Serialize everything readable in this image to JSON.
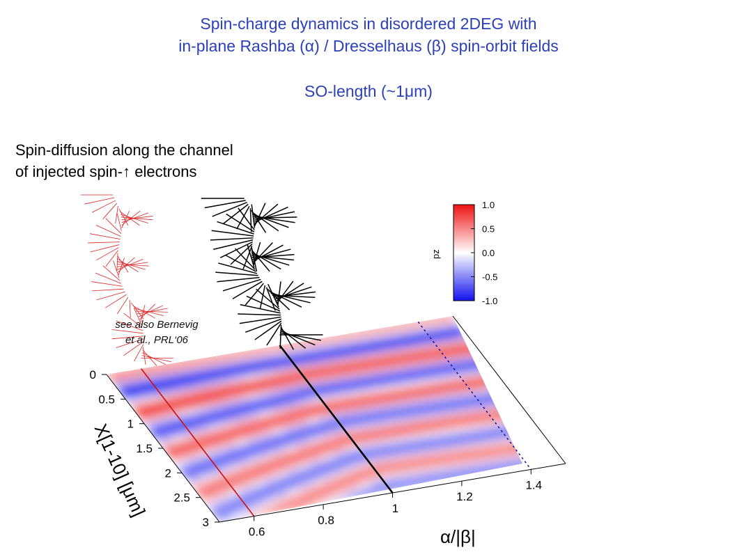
{
  "header": {
    "line1": "Spin-charge dynamics in disordered 2DEG with",
    "line2_parts": [
      "in-plane Rashba (",
      "α",
      ") / Dresselhaus (",
      "β",
      ") spin-orbit fields"
    ],
    "line3_parts": [
      "SO-length (~1",
      "μ",
      "m)"
    ]
  },
  "caption": {
    "line1": "Spin-diffusion along the channel",
    "line2_parts": [
      "of injected spin-",
      "↑",
      " electrons"
    ]
  },
  "reference": {
    "line1": "see also Bernevig",
    "line2": "et al., PRL‘06"
  },
  "chart_data": {
    "type": "heatmap",
    "title": "",
    "xlabel": "α/|β|",
    "ylabel": "X[1-10] [μm]",
    "zlabel": "p_z",
    "x_ticks": [
      "0.6",
      "0.8",
      "1",
      "1.2",
      "1.4"
    ],
    "y_ticks": [
      "0",
      "0.5",
      "1",
      "1.5",
      "2",
      "2.5",
      "3"
    ],
    "colorbar": {
      "label": "pz",
      "ticks": [
        "1.0",
        "0.5",
        "0.0",
        "-0.5",
        "-1.0"
      ],
      "range": [
        -1.0,
        1.0
      ],
      "colors": {
        "positive": "#ee0000",
        "zero": "#ffffff",
        "negative": "#0000ee"
      }
    },
    "xlim": [
      0.5,
      1.5
    ],
    "ylim": [
      0,
      3
    ],
    "marked_lines": [
      {
        "x": 0.6,
        "color": "#cc1111"
      },
      {
        "x": 1.0,
        "color": "#000000"
      },
      {
        "x": 1.4,
        "color": "#1a1a99",
        "style": "dotted"
      }
    ],
    "spin_traces": [
      {
        "at_x": 0.6,
        "color": "#dd2222"
      },
      {
        "at_x": 1.0,
        "color": "#000000"
      }
    ]
  }
}
